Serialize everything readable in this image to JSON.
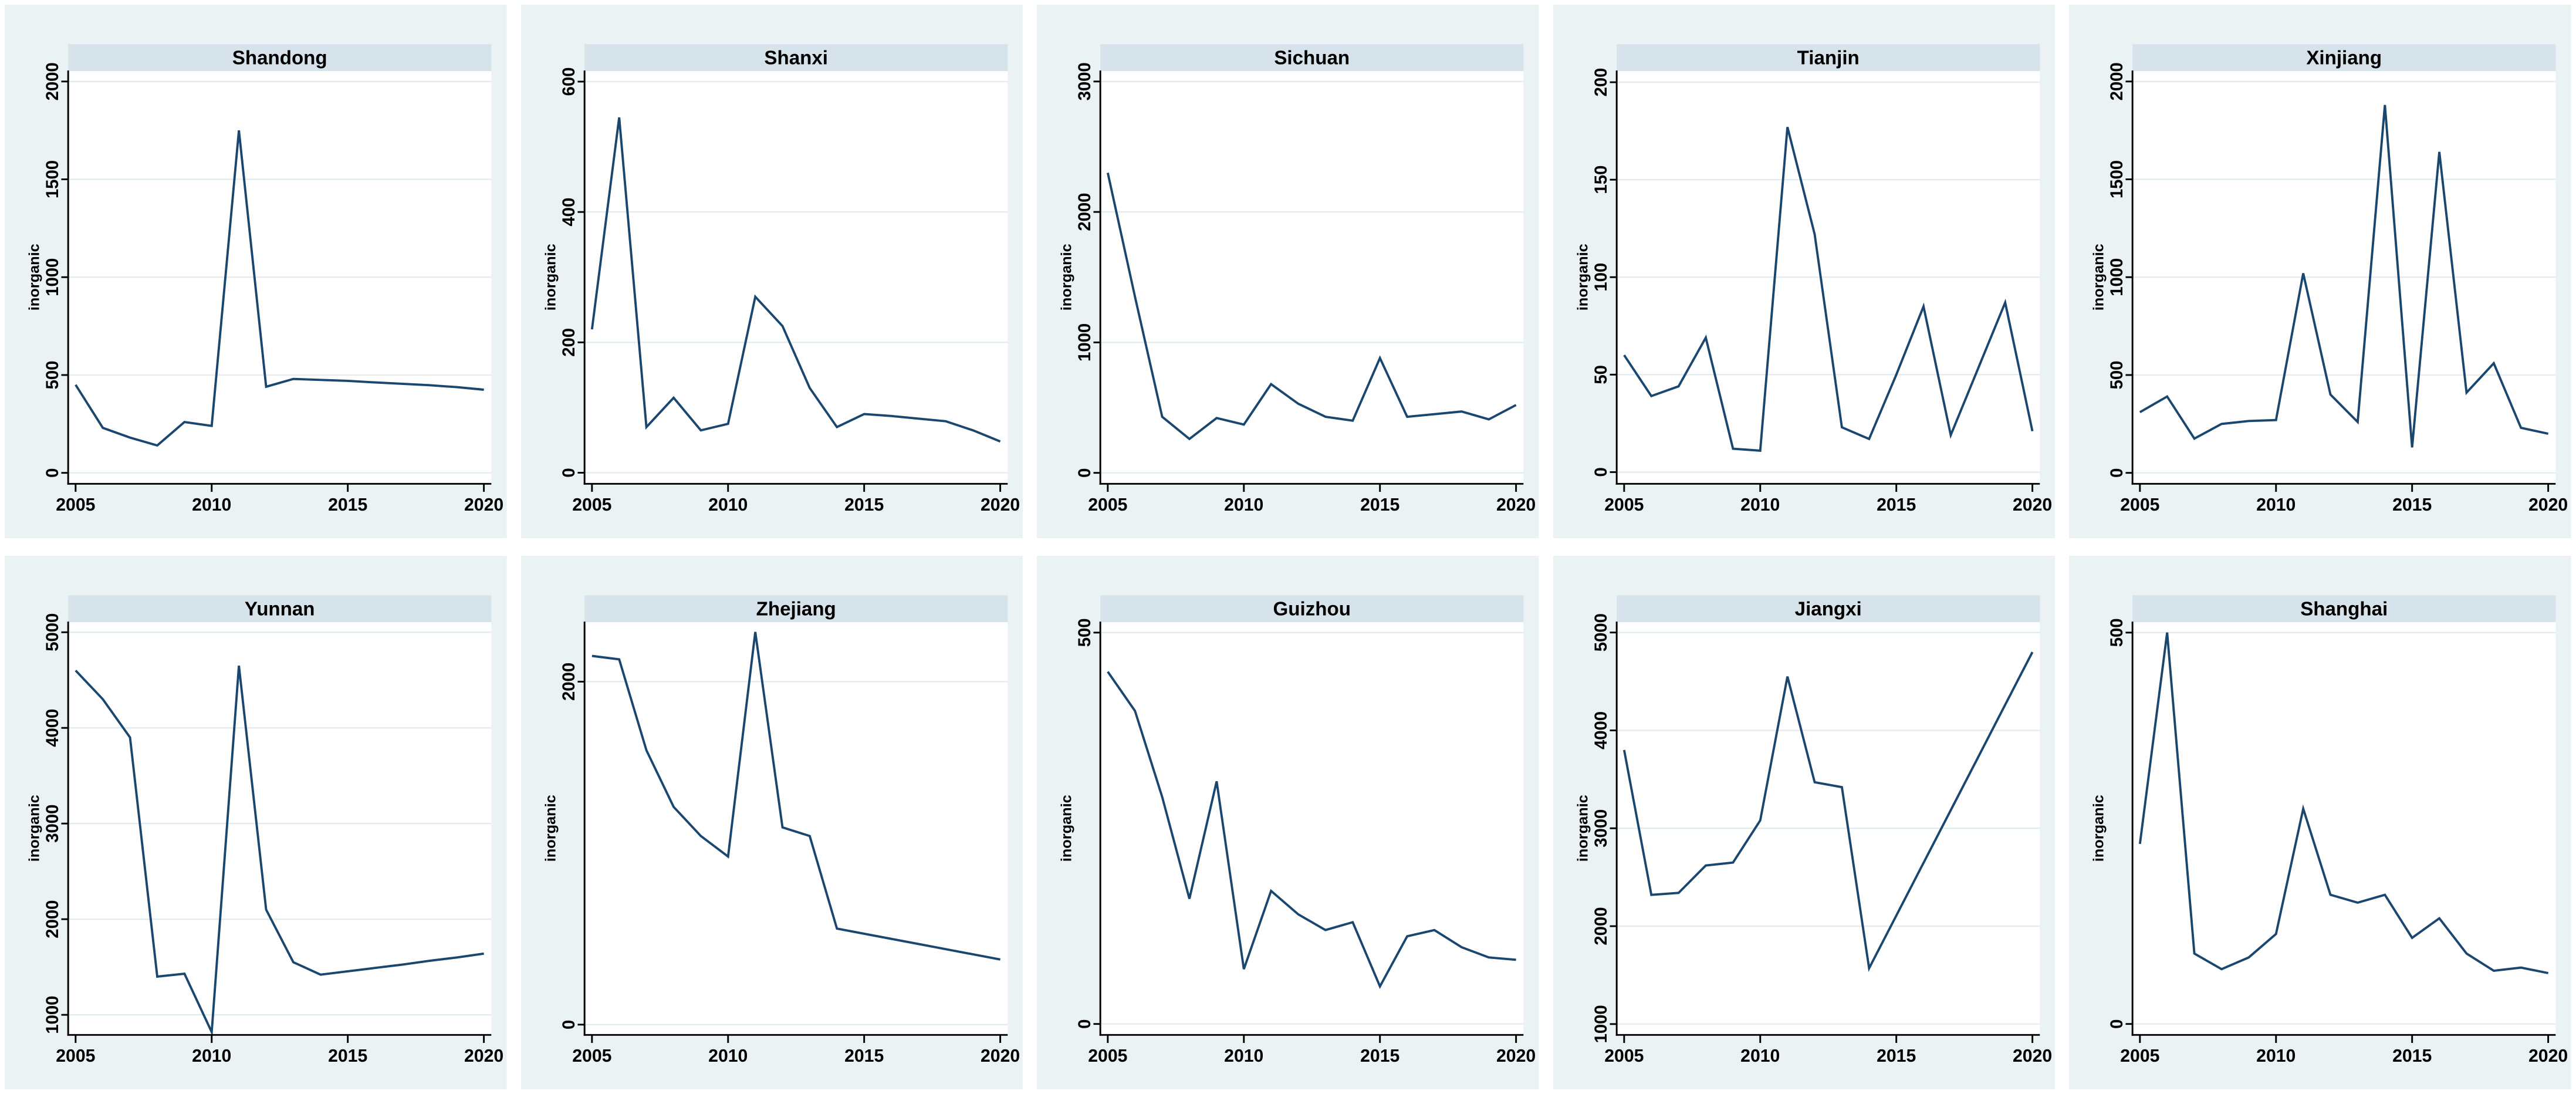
{
  "figure": {
    "ylabel": "inorganic",
    "x_ticks": [
      2005,
      2010,
      2015,
      2020
    ],
    "colors": {
      "page_bg": "#ffffff",
      "panel_bg": "#eaf2f3",
      "title_bar": "#d6e3ea",
      "plot_bg": "#ffffff",
      "grid": "#e3edef",
      "axis": "#000000",
      "line": "#1a476f",
      "text": "#000000"
    }
  },
  "chart_data": [
    {
      "type": "line",
      "title": "Shandong",
      "ylabel": "inorganic",
      "x": [
        2005,
        2006,
        2007,
        2008,
        2009,
        2010,
        2011,
        2012,
        2013,
        2014,
        2015,
        2016,
        2017,
        2018,
        2019,
        2020
      ],
      "values": [
        450,
        230,
        180,
        140,
        260,
        240,
        1750,
        440,
        480,
        475,
        470,
        462,
        455,
        448,
        438,
        425
      ],
      "yticks": [
        0,
        500,
        1000,
        1500,
        2000
      ],
      "ylim": [
        -56,
        2056
      ],
      "xticks": [
        2005,
        2010,
        2015,
        2020
      ],
      "grid": true,
      "legend": "none"
    },
    {
      "type": "line",
      "title": "Shanxi",
      "ylabel": "inorganic",
      "x": [
        2005,
        2006,
        2007,
        2008,
        2009,
        2010,
        2011,
        2012,
        2013,
        2014,
        2015,
        2016,
        2017,
        2018,
        2019,
        2020
      ],
      "values": [
        220,
        545,
        70,
        115,
        65,
        75,
        270,
        225,
        130,
        70,
        90,
        87,
        83,
        79,
        65,
        48
      ],
      "yticks": [
        0,
        200,
        400,
        600
      ],
      "ylim": [
        -17,
        617
      ],
      "xticks": [
        2005,
        2010,
        2015,
        2020
      ],
      "grid": true,
      "legend": "none"
    },
    {
      "type": "line",
      "title": "Sichuan",
      "ylabel": "inorganic",
      "x": [
        2005,
        2006,
        2007,
        2008,
        2009,
        2010,
        2011,
        2012,
        2013,
        2014,
        2015,
        2016,
        2017,
        2018,
        2019,
        2020
      ],
      "values": [
        2300,
        1350,
        430,
        260,
        420,
        370,
        680,
        530,
        430,
        400,
        880,
        430,
        450,
        470,
        410,
        520
      ],
      "yticks": [
        0,
        1000,
        2000,
        3000
      ],
      "ylim": [
        -84,
        3084
      ],
      "xticks": [
        2005,
        2010,
        2015,
        2020
      ],
      "grid": true,
      "legend": "none"
    },
    {
      "type": "line",
      "title": "Tianjin",
      "ylabel": "inorganic",
      "x": [
        2005,
        2006,
        2007,
        2008,
        2009,
        2010,
        2011,
        2012,
        2013,
        2014,
        2015,
        2016,
        2017,
        2018,
        2019,
        2020
      ],
      "values": [
        60,
        39,
        44,
        69,
        12,
        11,
        177,
        122,
        23,
        17,
        50,
        85,
        19,
        53,
        87,
        21
      ],
      "yticks": [
        0,
        50,
        100,
        150,
        200
      ],
      "ylim": [
        -6,
        206
      ],
      "xticks": [
        2005,
        2010,
        2015,
        2020
      ],
      "grid": true,
      "legend": "none"
    },
    {
      "type": "line",
      "title": "Xinjiang",
      "ylabel": "inorganic",
      "x": [
        2005,
        2006,
        2007,
        2008,
        2009,
        2010,
        2011,
        2012,
        2013,
        2014,
        2015,
        2016,
        2017,
        2018,
        2019,
        2020
      ],
      "values": [
        310,
        390,
        175,
        250,
        265,
        270,
        1020,
        400,
        260,
        1880,
        130,
        1640,
        410,
        560,
        230,
        200
      ],
      "yticks": [
        0,
        500,
        1000,
        1500,
        2000
      ],
      "ylim": [
        -56,
        2056
      ],
      "xticks": [
        2005,
        2010,
        2015,
        2020
      ],
      "grid": true,
      "legend": "none"
    },
    {
      "type": "line",
      "title": "Yunnan",
      "ylabel": "inorganic",
      "x": [
        2005,
        2006,
        2007,
        2008,
        2009,
        2010,
        2011,
        2012,
        2013,
        2014,
        2015,
        2016,
        2017,
        2018,
        2019,
        2020
      ],
      "values": [
        4600,
        4300,
        3900,
        1400,
        1430,
        820,
        4650,
        2100,
        1550,
        1420,
        1455,
        1490,
        1525,
        1565,
        1600,
        1640
      ],
      "yticks": [
        1000,
        2000,
        3000,
        4000,
        5000
      ],
      "ylim": [
        790,
        5111
      ],
      "xticks": [
        2005,
        2010,
        2015,
        2020
      ],
      "grid": true,
      "legend": "none"
    },
    {
      "type": "line",
      "title": "Zhejiang",
      "ylabel": "inorganic",
      "x": [
        2005,
        2006,
        2007,
        2008,
        2009,
        2010,
        2011,
        2012,
        2013,
        2014,
        2015,
        2016,
        2017,
        2018,
        2019,
        2020
      ],
      "values": [
        2150,
        2130,
        1600,
        1270,
        1100,
        980,
        2290,
        1150,
        1100,
        560,
        530,
        500,
        470,
        440,
        410,
        380
      ],
      "yticks": [
        0,
        2000
      ],
      "ylim": [
        -60,
        2350
      ],
      "xticks": [
        2005,
        2010,
        2015,
        2020
      ],
      "grid": true,
      "legend": "none"
    },
    {
      "type": "line",
      "title": "Guizhou",
      "ylabel": "inorganic",
      "x": [
        2005,
        2006,
        2007,
        2008,
        2009,
        2010,
        2011,
        2012,
        2013,
        2014,
        2015,
        2016,
        2017,
        2018,
        2019,
        2020
      ],
      "values": [
        450,
        400,
        290,
        160,
        310,
        70,
        170,
        140,
        120,
        130,
        48,
        112,
        120,
        98,
        85,
        82
      ],
      "yticks": [
        0,
        500
      ],
      "ylim": [
        -14,
        514
      ],
      "xticks": [
        2005,
        2010,
        2015,
        2020
      ],
      "grid": true,
      "legend": "none"
    },
    {
      "type": "line",
      "title": "Jiangxi",
      "ylabel": "inorganic",
      "x": [
        2005,
        2006,
        2007,
        2008,
        2009,
        2010,
        2011,
        2012,
        2013,
        2014,
        2015,
        2016,
        2017,
        2018,
        2019,
        2020
      ],
      "values": [
        3800,
        2320,
        2340,
        2620,
        2650,
        3080,
        4550,
        3470,
        3420,
        1570,
        2108,
        2647,
        3185,
        3723,
        4262,
        4800
      ],
      "yticks": [
        1000,
        2000,
        3000,
        4000,
        5000
      ],
      "ylim": [
        889,
        5111
      ],
      "xticks": [
        2005,
        2010,
        2015,
        2020
      ],
      "grid": true,
      "legend": "none"
    },
    {
      "type": "line",
      "title": "Shanghai",
      "ylabel": "inorganic",
      "x": [
        2005,
        2006,
        2007,
        2008,
        2009,
        2010,
        2011,
        2012,
        2013,
        2014,
        2015,
        2016,
        2017,
        2018,
        2019,
        2020
      ],
      "values": [
        230,
        500,
        90,
        70,
        85,
        115,
        275,
        165,
        155,
        165,
        110,
        135,
        90,
        68,
        72,
        65
      ],
      "yticks": [
        0,
        500
      ],
      "ylim": [
        -14,
        514
      ],
      "xticks": [
        2005,
        2010,
        2015,
        2020
      ],
      "grid": true,
      "legend": "none"
    }
  ]
}
